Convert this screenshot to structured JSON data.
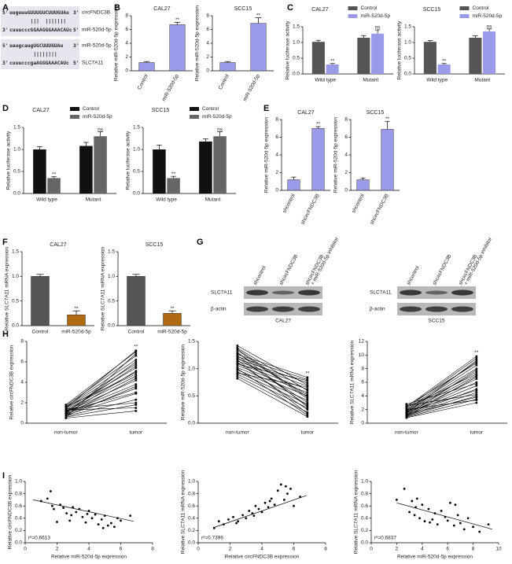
{
  "panel_labels": [
    "A",
    "B",
    "C",
    "D",
    "E",
    "F",
    "G",
    "H",
    "I"
  ],
  "panel_a": {
    "alignments": [
      {
        "top": {
          "prefix": "5'",
          "seq": "uuguuuGUUUGUCUUUGUAu",
          "suffix": "3'",
          "label": "circFNDC3B"
        },
        "pairing": "       |||  |||||||",
        "bottom": {
          "prefix": "3'",
          "seq": "cuuucccGGAAGGGAAACAUc",
          "suffix": "5'",
          "label": "miR-520d-5p"
        }
      },
      {
        "top": {
          "prefix": "5'",
          "seq": "uaugcaugUGCUUUGUAu",
          "suffix": "3'",
          "label": "miR-520d-5p"
        },
        "pairing": "        ||||||||",
        "bottom": {
          "prefix": "3'",
          "seq": "cuuucccgaAGGGAAACAUc",
          "suffix": "5'",
          "label": "SLC7A11"
        }
      }
    ]
  },
  "panel_g": {
    "cell_lines": [
      "CAL27",
      "SCC15"
    ],
    "lanes": [
      [
        "shcontrol"
      ],
      [
        "shcircFNDC3B"
      ],
      [
        "shcircFNDC3B",
        "+ miR-520d-5p inhibitor"
      ]
    ],
    "rows": [
      "SLC7A11",
      "β-actin"
    ]
  },
  "chart_data": [
    {
      "type": "bar",
      "title": "CAL27",
      "ylabel": "Relative miR-520d-5p expression",
      "categories": [
        "Control",
        "miR-520d-5p"
      ],
      "values": [
        1.2,
        6.7
      ],
      "errors": [
        0.15,
        0.35
      ],
      "significance": [
        null,
        "**"
      ],
      "color": "#9a9be8",
      "ylim": [
        0,
        8
      ],
      "yticks": [
        0,
        2,
        4,
        6,
        8
      ]
    },
    {
      "type": "bar",
      "title": "SCC15",
      "ylabel": "Relative miR-520d-5p expression",
      "categories": [
        "Control",
        "miR-520d-5p"
      ],
      "values": [
        1.2,
        6.9
      ],
      "errors": [
        0.15,
        0.8
      ],
      "significance": [
        null,
        "**"
      ],
      "color": "#9a9be8",
      "ylim": [
        0,
        8
      ],
      "yticks": [
        0,
        2,
        4,
        6,
        8
      ]
    },
    {
      "type": "grouped_bar",
      "title": "CAL27",
      "ylabel": "Relative luciferase activity",
      "categories": [
        "Wild type",
        "Mutant"
      ],
      "series": [
        {
          "name": "Control",
          "color": "#555555",
          "values": [
            1.02,
            1.15
          ],
          "errors": [
            0.05,
            0.07
          ]
        },
        {
          "name": "miR-520d-5p",
          "color": "#9a9be8",
          "values": [
            0.3,
            1.28
          ],
          "errors": [
            0.03,
            0.12
          ],
          "significance": [
            "**",
            "ns"
          ]
        }
      ],
      "ylim": [
        0,
        1.5
      ],
      "yticks": [
        {
          "value": 0,
          "label": "0.0"
        },
        0.5,
        {
          "value": 1,
          "label": "1.0"
        },
        1.5
      ]
    },
    {
      "type": "grouped_bar",
      "title": "SCC15",
      "ylabel": "Relative luciferase activity",
      "categories": [
        "Wild type",
        "Mutant"
      ],
      "series": [
        {
          "name": "Control",
          "color": "#555555",
          "values": [
            1.02,
            1.15
          ],
          "errors": [
            0.04,
            0.06
          ]
        },
        {
          "name": "miR-520d-5p",
          "color": "#9a9be8",
          "values": [
            0.3,
            1.35
          ],
          "errors": [
            0.03,
            0.08
          ],
          "significance": [
            "**",
            "ns"
          ]
        }
      ],
      "ylim": [
        0,
        1.5
      ],
      "yticks": [
        {
          "value": 0,
          "label": "0.0"
        },
        0.5,
        {
          "value": 1,
          "label": "1.0"
        },
        1.5
      ]
    },
    {
      "type": "grouped_bar",
      "title": "CAL27",
      "ylabel": "Relative luciferase activity",
      "categories": [
        "Wild type",
        "Mutant"
      ],
      "series": [
        {
          "name": "Control",
          "color": "#111111",
          "values": [
            1.0,
            1.08
          ],
          "errors": [
            0.06,
            0.08
          ]
        },
        {
          "name": "miR-520d-5p",
          "color": "#666666",
          "values": [
            0.35,
            1.3
          ],
          "errors": [
            0.03,
            0.1
          ],
          "significance": [
            "**",
            "ns"
          ]
        }
      ],
      "ylim": [
        0,
        1.5
      ],
      "yticks": [
        {
          "value": 0,
          "label": "0.0"
        },
        0.5,
        {
          "value": 1,
          "label": "1.0"
        },
        1.5
      ]
    },
    {
      "type": "grouped_bar",
      "title": "SCC15",
      "ylabel": "Relative luciferase activity",
      "categories": [
        "Wild type",
        "Mutant"
      ],
      "series": [
        {
          "name": "Control",
          "color": "#111111",
          "values": [
            1.0,
            1.18
          ],
          "errors": [
            0.1,
            0.06
          ]
        },
        {
          "name": "miR-520d-5p",
          "color": "#666666",
          "values": [
            0.35,
            1.3
          ],
          "errors": [
            0.04,
            0.1
          ],
          "significance": [
            "**",
            "ns"
          ]
        }
      ],
      "ylim": [
        0,
        1.5
      ],
      "yticks": [
        {
          "value": 0,
          "label": "0.0"
        },
        0.5,
        {
          "value": 1,
          "label": "1.0"
        },
        1.5
      ]
    },
    {
      "type": "bar",
      "title": "CAL27",
      "ylabel": "Relative miR-520d-5p expression",
      "categories": [
        "shcontrol",
        "shcircFNDC3B"
      ],
      "values": [
        1.2,
        7.0
      ],
      "errors": [
        0.3,
        0.2
      ],
      "significance": [
        null,
        "**"
      ],
      "color": "#9a9be8",
      "ylim": [
        0,
        8
      ],
      "yticks": [
        0,
        2,
        4,
        6,
        8
      ]
    },
    {
      "type": "bar",
      "title": "SCC15",
      "ylabel": "Relative miR-520d-5p expression",
      "categories": [
        "shcontrol",
        "shcircFNDC3B"
      ],
      "values": [
        1.2,
        6.9
      ],
      "errors": [
        0.2,
        0.9
      ],
      "significance": [
        null,
        "**"
      ],
      "color": "#9a9be8",
      "ylim": [
        0,
        8
      ],
      "yticks": [
        0,
        2,
        4,
        6,
        8
      ]
    },
    {
      "type": "bar",
      "title": "CAL27",
      "ylabel": "Relative SLC7A11 mRNA expression",
      "categories": [
        "Control",
        "miR-520d-5p"
      ],
      "values": [
        1.0,
        0.22
      ],
      "errors": [
        0.04,
        0.08
      ],
      "significance": [
        null,
        "**"
      ],
      "colors": [
        "#555555",
        "#b06a12"
      ],
      "ylim": [
        0,
        1.5
      ],
      "yticks": [
        {
          "value": 0,
          "label": "0.0"
        },
        0.5,
        {
          "value": 1,
          "label": "1.0"
        },
        1.5
      ]
    },
    {
      "type": "bar",
      "title": "SCC15",
      "ylabel": "Relative SLC7A11 mRNA expression",
      "categories": [
        "Control",
        "miR-520d-5p"
      ],
      "values": [
        1.0,
        0.25
      ],
      "errors": [
        0.04,
        0.05
      ],
      "significance": [
        null,
        "**"
      ],
      "colors": [
        "#555555",
        "#b06a12"
      ],
      "ylim": [
        0,
        1.5
      ],
      "yticks": [
        {
          "value": 0,
          "label": "0.0"
        },
        0.5,
        {
          "value": 1,
          "label": "1.0"
        },
        1.5
      ]
    },
    {
      "type": "paired_line",
      "ylabel": "Relative circFNDC3B expression",
      "categories": [
        "non-tumor",
        "tumor"
      ],
      "pairs": [
        [
          0.5,
          1.2
        ],
        [
          0.6,
          1.8
        ],
        [
          0.7,
          2.3
        ],
        [
          0.8,
          2.9
        ],
        [
          0.9,
          3.4
        ],
        [
          1.0,
          3.8
        ],
        [
          1.1,
          4.2
        ],
        [
          1.2,
          4.6
        ],
        [
          1.3,
          5.0
        ],
        [
          1.4,
          5.4
        ],
        [
          1.5,
          5.8
        ],
        [
          1.6,
          6.2
        ],
        [
          1.7,
          6.6
        ],
        [
          1.8,
          7.0
        ],
        [
          0.6,
          6.8
        ],
        [
          0.9,
          5.1
        ],
        [
          1.2,
          3.0
        ],
        [
          1.4,
          2.0
        ],
        [
          1.0,
          6.0
        ],
        [
          0.8,
          4.4
        ],
        [
          1.5,
          7.1
        ],
        [
          1.3,
          1.5
        ],
        [
          0.7,
          3.6
        ],
        [
          1.1,
          5.6
        ],
        [
          1.6,
          4.8
        ]
      ],
      "significance": "**",
      "color": "#000000",
      "ylim": [
        0,
        8
      ],
      "yticks": [
        0,
        2,
        4,
        6,
        8
      ]
    },
    {
      "type": "paired_line",
      "ylabel": "Relative miR-520d-5p expression",
      "categories": [
        "non-tumor",
        "tumor"
      ],
      "pairs": [
        [
          0.82,
          0.12
        ],
        [
          0.86,
          0.2
        ],
        [
          0.9,
          0.28
        ],
        [
          0.94,
          0.35
        ],
        [
          0.98,
          0.42
        ],
        [
          1.02,
          0.5
        ],
        [
          1.06,
          0.56
        ],
        [
          1.1,
          0.62
        ],
        [
          1.14,
          0.68
        ],
        [
          1.18,
          0.74
        ],
        [
          1.22,
          0.8
        ],
        [
          1.26,
          0.84
        ],
        [
          1.3,
          0.3
        ],
        [
          1.34,
          0.45
        ],
        [
          1.38,
          0.6
        ],
        [
          1.42,
          0.7
        ],
        [
          1.0,
          0.15
        ],
        [
          1.12,
          0.25
        ],
        [
          1.2,
          0.38
        ],
        [
          1.28,
          0.52
        ],
        [
          0.92,
          0.66
        ],
        [
          1.08,
          0.78
        ],
        [
          1.16,
          0.18
        ],
        [
          1.24,
          0.32
        ],
        [
          1.36,
          0.48
        ]
      ],
      "significance": "**",
      "color": "#000000",
      "ylim": [
        0,
        1.5
      ],
      "yticks": [
        {
          "value": 0,
          "label": "0.0"
        },
        0.5,
        {
          "value": 1,
          "label": "1.0"
        },
        1.5
      ]
    },
    {
      "type": "paired_line",
      "ylabel": "Relative SLC7A11 mRNA expression",
      "categories": [
        "non-tumor",
        "tumor"
      ],
      "pairs": [
        [
          0.8,
          3.0
        ],
        [
          0.9,
          3.5
        ],
        [
          1.0,
          4.0
        ],
        [
          1.1,
          4.5
        ],
        [
          1.2,
          5.0
        ],
        [
          1.3,
          5.5
        ],
        [
          1.4,
          6.0
        ],
        [
          1.5,
          6.5
        ],
        [
          1.6,
          7.0
        ],
        [
          1.7,
          7.5
        ],
        [
          1.8,
          8.0
        ],
        [
          1.9,
          8.5
        ],
        [
          2.0,
          9.0
        ],
        [
          2.2,
          9.5
        ],
        [
          2.4,
          9.8
        ],
        [
          2.6,
          4.2
        ],
        [
          2.8,
          5.8
        ],
        [
          1.2,
          7.8
        ],
        [
          1.5,
          9.2
        ],
        [
          2.0,
          3.4
        ],
        [
          1.0,
          6.8
        ],
        [
          2.3,
          7.2
        ],
        [
          1.7,
          4.8
        ],
        [
          2.5,
          8.8
        ],
        [
          1.3,
          3.8
        ]
      ],
      "significance": "**",
      "color": "#000000",
      "ylim": [
        0,
        12
      ],
      "yticks": [
        0,
        2,
        4,
        6,
        8,
        10,
        12
      ]
    },
    {
      "type": "scatter",
      "xlabel": "Relative miR-520d-5p expression",
      "ylabel": "Relative circFNDC3B expression",
      "x": [
        1.0,
        1.4,
        1.6,
        1.8,
        2.0,
        2.2,
        2.4,
        2.6,
        2.8,
        3.0,
        3.2,
        3.4,
        3.6,
        3.8,
        4.0,
        4.2,
        4.4,
        4.6,
        4.8,
        5.0,
        5.2,
        5.4,
        5.6,
        5.8,
        6.0,
        6.6,
        1.7,
        2.9,
        3.9,
        4.9
      ],
      "y": [
        0.68,
        0.72,
        0.84,
        0.55,
        0.34,
        0.62,
        0.57,
        0.48,
        0.36,
        0.58,
        0.5,
        0.55,
        0.42,
        0.33,
        0.52,
        0.4,
        0.46,
        0.3,
        0.38,
        0.44,
        0.28,
        0.32,
        0.26,
        0.4,
        0.36,
        0.44,
        0.6,
        0.45,
        0.47,
        0.24
      ],
      "fit": {
        "x": [
          0.5,
          6.8
        ],
        "y": [
          0.7,
          0.35
        ]
      },
      "annotation": "r²=0.6613",
      "xlim": [
        0,
        8
      ],
      "xticks": [
        0,
        2,
        4,
        6,
        8
      ],
      "ylim": [
        0,
        1
      ],
      "yticks": [
        {
          "value": 0,
          "label": "0.0"
        },
        0.2,
        0.4,
        0.6,
        0.8,
        {
          "value": 1,
          "label": "1.0"
        }
      ]
    },
    {
      "type": "scatter",
      "xlabel": "Relative circFNDC3B expression",
      "ylabel": "Relative SLC7A11 mRNA expression",
      "x": [
        1.0,
        1.3,
        1.6,
        1.9,
        2.2,
        2.5,
        2.8,
        3.0,
        3.2,
        3.4,
        3.6,
        3.8,
        4.0,
        4.2,
        4.4,
        4.6,
        4.8,
        5.0,
        5.2,
        5.4,
        5.6,
        5.8,
        6.0,
        6.4,
        2.4,
        3.5,
        4.5,
        5.5
      ],
      "y": [
        0.24,
        0.35,
        0.3,
        0.38,
        0.42,
        0.35,
        0.45,
        0.4,
        0.52,
        0.48,
        0.6,
        0.55,
        0.5,
        0.65,
        0.58,
        0.72,
        0.62,
        0.85,
        0.95,
        0.7,
        0.8,
        0.88,
        0.6,
        0.75,
        0.32,
        0.44,
        0.68,
        0.92
      ],
      "fit": {
        "x": [
          1.0,
          6.8
        ],
        "y": [
          0.25,
          0.77
        ]
      },
      "annotation": "r²=0.7396",
      "xlim": [
        0,
        8
      ],
      "xticks": [
        0,
        2,
        4,
        6,
        8
      ],
      "ylim": [
        0,
        1
      ],
      "yticks": [
        {
          "value": 0,
          "label": "0.0"
        },
        0.2,
        0.4,
        0.6,
        0.8,
        {
          "value": 1,
          "label": "1.0"
        }
      ]
    },
    {
      "type": "scatter",
      "xlabel": "Relative miR-520d-5p expression",
      "ylabel": "Relative SLC7A11 mRNA expression",
      "x": [
        2.0,
        2.6,
        3.0,
        3.2,
        3.4,
        3.6,
        3.8,
        4.0,
        4.2,
        4.5,
        4.8,
        5.0,
        5.2,
        5.5,
        5.8,
        6.0,
        6.2,
        6.5,
        6.8,
        7.0,
        7.3,
        7.6,
        8.0,
        8.5,
        9.2,
        3.5,
        4.6,
        6.6
      ],
      "y": [
        0.7,
        0.88,
        0.5,
        0.68,
        0.45,
        0.72,
        0.4,
        0.62,
        0.35,
        0.55,
        0.38,
        0.48,
        0.3,
        0.52,
        0.42,
        0.36,
        0.65,
        0.28,
        0.45,
        0.32,
        0.22,
        0.4,
        0.26,
        0.18,
        0.3,
        0.58,
        0.33,
        0.62
      ],
      "fit": {
        "x": [
          2.0,
          9.5
        ],
        "y": [
          0.65,
          0.22
        ]
      },
      "annotation": "r²=0.6837",
      "xlim": [
        0,
        10
      ],
      "xticks": [
        0,
        2,
        4,
        6,
        8,
        10
      ],
      "ylim": [
        0,
        1
      ],
      "yticks": [
        {
          "value": 0,
          "label": "0.0"
        },
        0.2,
        0.4,
        0.6,
        0.8,
        {
          "value": 1,
          "label": "1.0"
        }
      ]
    }
  ]
}
